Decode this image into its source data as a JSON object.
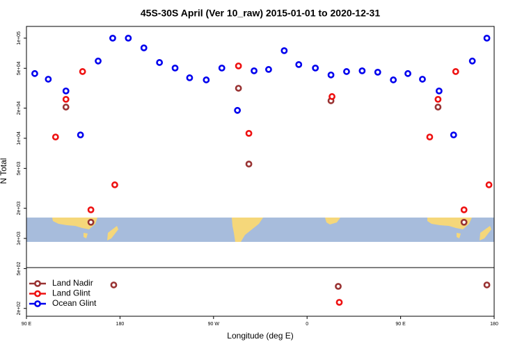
{
  "chart_data": {
    "type": "scatter",
    "title": "45S-30S April (Ver 10_raw)   2015-01-01 to 2020-12-31",
    "xlabel": "Longitude (deg E)",
    "ylabel": "N Total",
    "log_y": true,
    "legend": "bottom-left",
    "xlim": [
      90,
      540
    ],
    "xticks": [
      {
        "value": 90,
        "label": "90 E"
      },
      180,
      {
        "value": 270,
        "label": "90 W"
      },
      {
        "value": 360,
        "label": "0"
      },
      {
        "value": 450,
        "label": "90 E"
      },
      {
        "value": 540,
        "label": "180"
      }
    ],
    "ylim": [
      167,
      131000
    ],
    "yticks": [
      {
        "value": 200,
        "label": "2e+02"
      },
      {
        "value": 500,
        "label": "5e+02"
      },
      {
        "value": 1000,
        "label": "1e+03"
      },
      {
        "value": 2000,
        "label": "2e+03"
      },
      {
        "value": 5000,
        "label": "5e+03"
      },
      {
        "value": 10000,
        "label": "1e+04"
      },
      {
        "value": 20000,
        "label": "2e+04"
      },
      {
        "value": 50000,
        "label": "5e+04"
      },
      {
        "value": 100000,
        "label": "1e+05"
      }
    ],
    "series": [
      {
        "name": "Land Nadir",
        "color": "#993333",
        "x": [
          128,
          152,
          174,
          294,
          304,
          383,
          390,
          486,
          511,
          533
        ],
        "values": [
          20500,
          1450,
          343,
          31600,
          5530,
          23700,
          332,
          20500,
          1450,
          343
        ]
      },
      {
        "name": "Land Glint",
        "color": "#ee1111",
        "x": [
          118,
          128,
          144,
          152,
          175,
          294,
          304,
          384,
          391,
          478,
          486,
          503,
          511,
          535
        ],
        "values": [
          10300,
          24500,
          46400,
          1930,
          3430,
          52800,
          11200,
          26100,
          230,
          10300,
          24500,
          46400,
          1930,
          3430
        ]
      },
      {
        "name": "Ocean Glint",
        "color": "#0000ee",
        "x": [
          98,
          111,
          128,
          142,
          159,
          173,
          188,
          203,
          218,
          233,
          247,
          263,
          278,
          293,
          309,
          323,
          338,
          352,
          368,
          383,
          398,
          413,
          428,
          443,
          457,
          471,
          487,
          501,
          519,
          533
        ],
        "values": [
          44300,
          38900,
          29700,
          10800,
          59100,
          100000,
          100000,
          80000,
          57100,
          50300,
          40200,
          38300,
          50300,
          19000,
          47200,
          48700,
          75000,
          54500,
          50300,
          42900,
          46400,
          47200,
          45700,
          38300,
          44300,
          38900,
          29700,
          10800,
          59100,
          100000
        ]
      }
    ]
  }
}
